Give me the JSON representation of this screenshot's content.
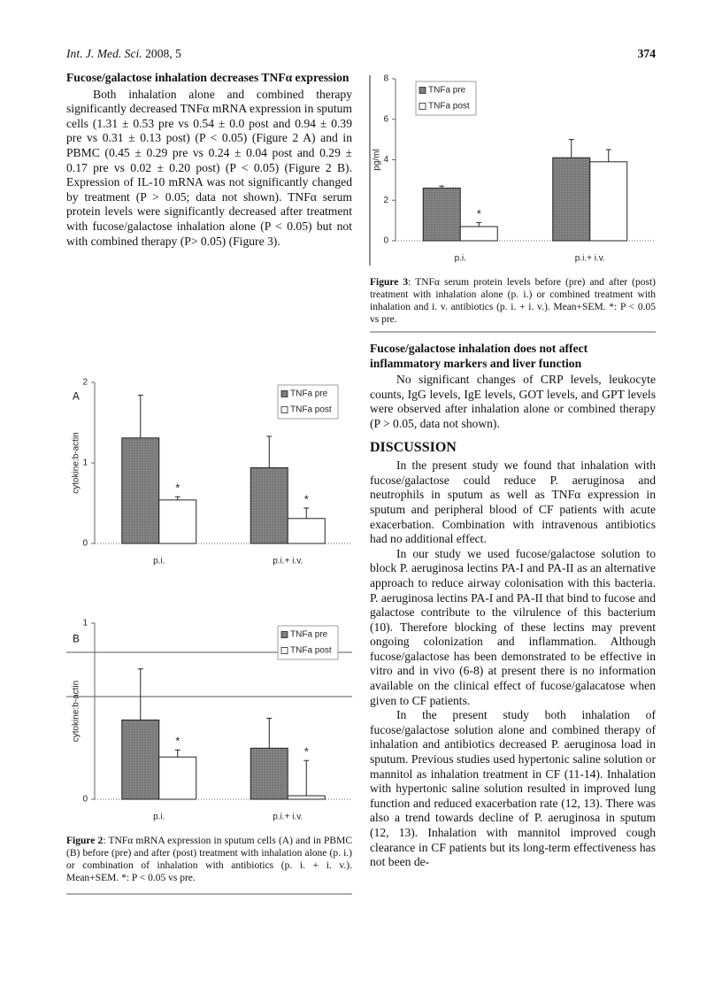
{
  "header": {
    "journal": "Int. J. Med. Sci.",
    "year_volume": "2008, 5",
    "page": "374"
  },
  "left_column": {
    "heading": "Fucose/galactose inhalation decreases TNFα expression",
    "paragraphs": [
      "Both inhalation alone and combined therapy significantly decreased TNFα mRNA expression in sputum cells (1.31 ± 0.53 pre vs 0.54 ± 0.0 post and 0.94 ± 0.39 pre vs 0.31 ± 0.13 post) (P < 0.05) (Figure 2 A) and in PBMC (0.45 ± 0.29 pre vs 0.24 ± 0.04 post and 0.29 ± 0.17 pre vs 0.02 ± 0.20 post) (P < 0.05) (Figure 2 B). Expression of IL-10 mRNA was not significantly changed by treatment (P > 0.05; data not shown). TNFα serum protein levels were significantly decreased after treatment with fucose/galactose inhalation alone (P < 0.05) but not with combined therapy (P> 0.05) (Figure 3)."
    ],
    "figure_caption": {
      "label": "Figure 2",
      "text": ": TNFα mRNA expression in sputum cells (A) and in PBMC (B) before (pre) and after (post) treatment with inhalation alone (p. i.) or combination of inhalation with antibiotics (p. i. + i. v.). Mean+SEM. *: P < 0.05 vs pre."
    }
  },
  "right_column": {
    "figure_caption": {
      "label": "Figure 3",
      "text": ": TNFα serum protein levels before (pre) and after (post) treatment with inhalation alone (p. i.) or combined treatment with inhalation and i. v. antibiotics (p. i. + i. v.). Mean+SEM. *: P < 0.05 vs pre."
    },
    "heading": "Fucose/galactose inhalation does not affect inflammatory markers and liver function",
    "paragraphs": [
      "No significant changes of CRP levels, leukocyte counts, IgG levels, IgE levels, GOT levels, and GPT levels were observed after inhalation alone or combined therapy (P > 0.05, data not shown)."
    ],
    "section_heading": "DISCUSSION",
    "discussion_paragraphs": [
      "In the present study we found that inhalation with fucose/galactose could reduce P. aeruginosa and neutrophils in sputum as well as TNFα expression in sputum and peripheral blood of CF patients with acute exacerbation. Combination with intravenous antibiotics had no additional effect.",
      "In our study we used fucose/galactose solution to block P. aeruginosa lectins PA-I and PA-II as an alternative approach to reduce airway colonisation with this bacteria. P. aeruginosa lectins PA-I and PA-II that bind to fucose and galactose contribute to the vilrulence of this bacterium (10). Therefore blocking of these lectins may prevent ongoing colonization and inflammation. Although fucose/galactose has been demonstrated to be effective in vitro and in vivo (6-8) at present there is no information available on the clinical effect of fucose/galacatose when given to CF patients.",
      "In the present study both inhalation of fucose/galactose solution alone and combined therapy of inhalation and antibiotics decreased P. aeruginosa load in sputum. Previous studies used hypertonic saline solution or mannitol as inhalation treatment in CF (11-14). Inhalation with hypertonic saline solution resulted in improved lung function and reduced exacerbation rate (12, 13). There was also a trend towards decline of P. aeruginosa in sputum (12, 13). Inhalation with mannitol improved cough clearance in CF patients but its long-term effectiveness has not been de-"
    ]
  },
  "chart_data": [
    {
      "type": "bar",
      "y_label": "pg/ml",
      "categories": [
        "p.i.",
        "p.i.+ i.v."
      ],
      "series": [
        {
          "name": "TNFa pre",
          "color": "#808080",
          "values": [
            2.6,
            4.1
          ],
          "errors": [
            0.1,
            0.9
          ],
          "markers": [
            null,
            null
          ]
        },
        {
          "name": "TNFa post",
          "color": "#ffffff",
          "values": [
            0.7,
            3.9
          ],
          "errors": [
            0.2,
            0.6
          ],
          "markers": [
            "*",
            null
          ]
        }
      ],
      "ylim": [
        0,
        8
      ],
      "yticks": [
        0,
        2,
        4,
        6,
        8
      ],
      "legend": "upper left"
    },
    {
      "type": "bar",
      "panel_label": "A",
      "y_label": "cytokine:b-actin",
      "categories": [
        "p.i.",
        "p.i.+ i.v."
      ],
      "series": [
        {
          "name": "TNFa pre",
          "color": "#808080",
          "values": [
            1.31,
            0.94
          ],
          "errors": [
            0.53,
            0.39
          ],
          "markers": [
            null,
            null
          ]
        },
        {
          "name": "TNFa post",
          "color": "#ffffff",
          "values": [
            0.54,
            0.31
          ],
          "errors": [
            0.04,
            0.13
          ],
          "markers": [
            "*",
            "*"
          ]
        }
      ],
      "ylim": [
        0,
        2
      ],
      "yticks": [
        0,
        1,
        2
      ],
      "legend": "upper right"
    },
    {
      "type": "bar",
      "panel_label": "B",
      "y_label": "cytokine:b-actin",
      "categories": [
        "p.i.",
        "p.i.+ i.v."
      ],
      "series": [
        {
          "name": "TNFa pre",
          "color": "#808080",
          "values": [
            0.45,
            0.29
          ],
          "errors": [
            0.29,
            0.17
          ],
          "markers": [
            null,
            null
          ]
        },
        {
          "name": "TNFa post",
          "color": "#ffffff",
          "values": [
            0.24,
            0.02
          ],
          "errors": [
            0.04,
            0.2
          ],
          "markers": [
            "*",
            "*"
          ]
        }
      ],
      "ylim": [
        0,
        1
      ],
      "yticks": [
        0,
        1
      ],
      "legend": "upper right"
    }
  ]
}
